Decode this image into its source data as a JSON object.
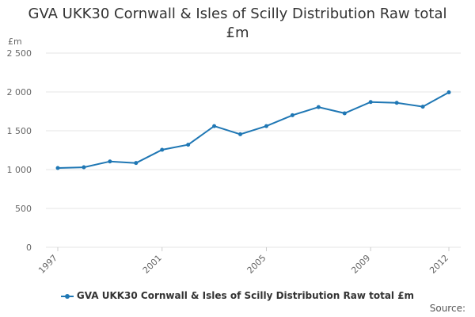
{
  "colors": {
    "series": "#1f77b4",
    "grid": "#e6e6e6",
    "axis_text": "#666666"
  },
  "chart_data": {
    "type": "line",
    "title_line1": "GVA UKK30 Cornwall & Isles of Scilly Distribution Raw total",
    "title_line2": "£m",
    "ylabel": "£m",
    "xlabel": "",
    "ylim": [
      0,
      2500
    ],
    "yticks": [
      0,
      500,
      1000,
      1500,
      2000,
      2500
    ],
    "ytick_labels": [
      "0",
      "500",
      "1 000",
      "1 500",
      "2 000",
      "2 500"
    ],
    "xticks": [
      "1997",
      "2001",
      "2005",
      "2009",
      "2012"
    ],
    "x": [
      1997,
      1998,
      1999,
      2000,
      2001,
      2002,
      2003,
      2004,
      2005,
      2006,
      2007,
      2008,
      2009,
      2010,
      2011,
      2012
    ],
    "series": [
      {
        "name": "GVA UKK30 Cornwall & Isles of Scilly Distribution Raw total £m",
        "values": [
          1020,
          1030,
          1105,
          1085,
          1255,
          1320,
          1560,
          1455,
          1560,
          1700,
          1805,
          1725,
          1870,
          1860,
          1810,
          1995
        ]
      }
    ],
    "grid": true,
    "legend_position": "bottom"
  },
  "footer": {
    "source_label": "Source:"
  }
}
